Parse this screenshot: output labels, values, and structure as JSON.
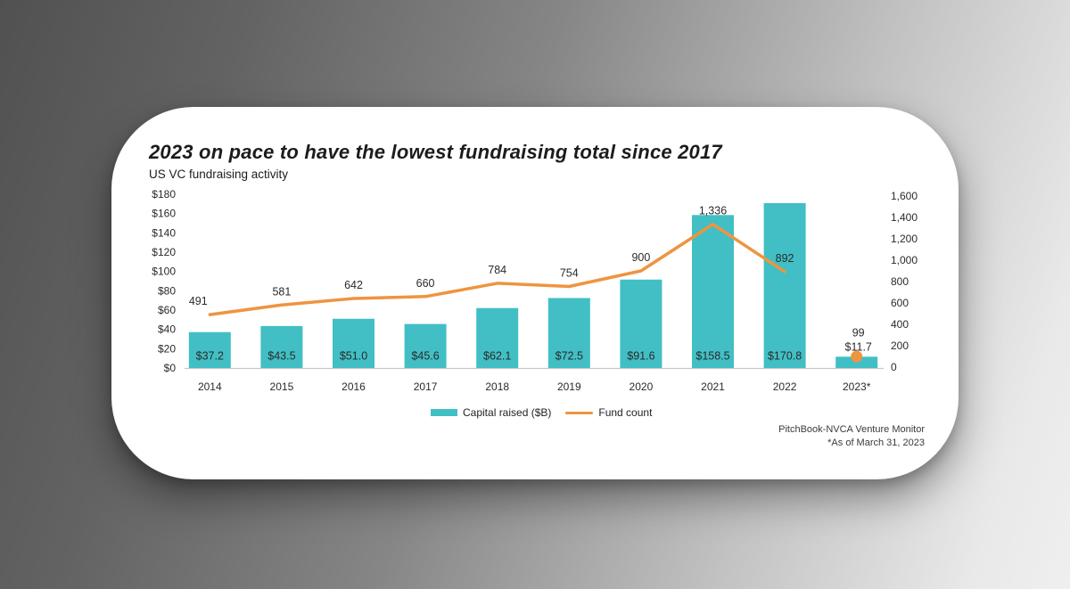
{
  "card": {
    "title": "2023 on pace to have the lowest fundraising total since 2017",
    "subtitle": "US VC fundraising activity",
    "source_line1": "PitchBook-NVCA Venture Monitor",
    "source_line2": "*As of March 31, 2023"
  },
  "legend": {
    "bar_label": "Capital raised ($B)",
    "line_label": "Fund count"
  },
  "colors": {
    "bar_teal": "#41BFC5",
    "line_orange": "#EF9440",
    "axis_line": "#c9c9c9",
    "label_text": "#1d1d1d"
  },
  "chart_data": {
    "type": "bar",
    "subtype": "combo-bar-line-dual-axis",
    "title": "2023 on pace to have the lowest fundraising total since 2017",
    "subtitle": "US VC fundraising activity",
    "categories": [
      "2014",
      "2015",
      "2016",
      "2017",
      "2018",
      "2019",
      "2020",
      "2021",
      "2022",
      "2023*"
    ],
    "series": [
      {
        "name": "Capital raised ($B)",
        "type": "bar",
        "axis": "left",
        "values": [
          37.2,
          43.5,
          51.0,
          45.6,
          62.1,
          72.5,
          91.6,
          158.5,
          170.8,
          11.7
        ],
        "labels": [
          "$37.2",
          "$43.5",
          "$51.0",
          "$45.6",
          "$62.1",
          "$72.5",
          "$91.6",
          "$158.5",
          "$170.8",
          "$11.7"
        ]
      },
      {
        "name": "Fund count",
        "type": "line",
        "axis": "right",
        "values": [
          491,
          581,
          642,
          660,
          784,
          754,
          900,
          1336,
          892,
          99
        ],
        "labels": [
          "491",
          "581",
          "642",
          "660",
          "784",
          "754",
          "900",
          "1,336",
          "892",
          "99"
        ],
        "note": "line drawn 2014-2022; 2023 shown as isolated dot marker"
      }
    ],
    "left_axis": {
      "min": 0,
      "max": 180,
      "step": 20,
      "ticks": [
        "$0",
        "$20",
        "$40",
        "$60",
        "$80",
        "$100",
        "$120",
        "$140",
        "$160",
        "$180"
      ]
    },
    "right_axis": {
      "min": 0,
      "max": 1600,
      "step": 200,
      "ticks": [
        "0",
        "200",
        "400",
        "600",
        "800",
        "1,000",
        "1,200",
        "1,400",
        "1,600"
      ]
    },
    "grid": false,
    "legend_position": "bottom-center"
  }
}
